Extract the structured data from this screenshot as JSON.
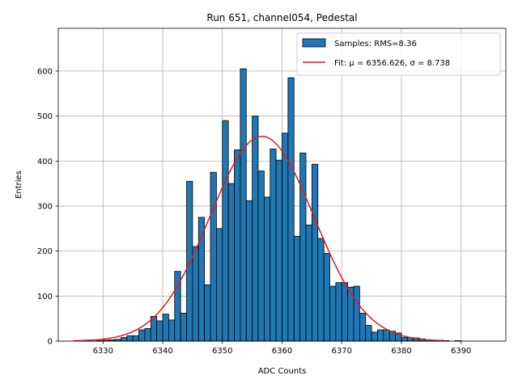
{
  "chart_data": {
    "type": "bar",
    "subtype": "histogram",
    "title": "Run 651, channel054, Pedestal",
    "xlabel": "ADC Counts",
    "ylabel": "Entries",
    "xlim": [
      6322.5,
      6397.5
    ],
    "ylim": [
      0,
      695
    ],
    "xticks": [
      6330,
      6340,
      6350,
      6360,
      6370,
      6380,
      6390
    ],
    "yticks": [
      0,
      100,
      200,
      300,
      400,
      500,
      600
    ],
    "grid": true,
    "legend_position": "top-right",
    "histogram": {
      "name": "Samples: RMS=8.36",
      "color": "#1f77b4",
      "edge_color": "#000000",
      "bin_edges": [
        6325,
        6326,
        6327,
        6328,
        6329,
        6330,
        6331,
        6332,
        6333,
        6334,
        6335,
        6336,
        6337,
        6338,
        6339,
        6340,
        6341,
        6342,
        6343,
        6344,
        6345,
        6346,
        6347,
        6348,
        6349,
        6350,
        6351,
        6352,
        6353,
        6354,
        6355,
        6356,
        6357,
        6358,
        6359,
        6360,
        6361,
        6362,
        6363,
        6364,
        6365,
        6366,
        6367,
        6368,
        6369,
        6370,
        6371,
        6372,
        6373,
        6374,
        6375,
        6376,
        6377,
        6378,
        6379,
        6380,
        6381,
        6382,
        6383,
        6384,
        6385,
        6386,
        6387,
        6388,
        6389,
        6390,
        6391,
        6392,
        6393,
        6394
      ],
      "counts": [
        0,
        0,
        1,
        0,
        1,
        2,
        3,
        4,
        8,
        12,
        12,
        25,
        28,
        55,
        45,
        60,
        47,
        155,
        62,
        355,
        210,
        275,
        125,
        375,
        250,
        490,
        350,
        425,
        605,
        312,
        500,
        378,
        320,
        427,
        402,
        462,
        585,
        233,
        418,
        258,
        393,
        228,
        195,
        122,
        130,
        130,
        120,
        122,
        62,
        35,
        20,
        25,
        25,
        22,
        18,
        8,
        8,
        7,
        5,
        3,
        2,
        2,
        1,
        0,
        1,
        0,
        0,
        0,
        0
      ]
    },
    "fit": {
      "name": "Fit: μ = 6356.626, σ = 8.738",
      "mu": 6356.626,
      "sigma": 8.738,
      "amplitude": 455,
      "x_range": [
        6325,
        6387
      ],
      "color": "#e31a1c"
    }
  }
}
